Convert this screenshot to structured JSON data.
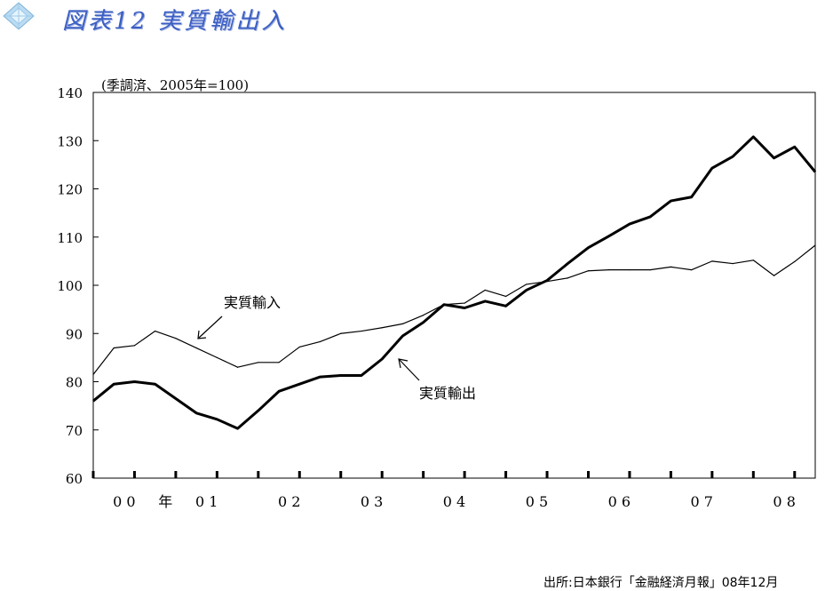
{
  "header": {
    "title": "図表12 実質輸出入",
    "icon": "diamond-emblem-icon"
  },
  "source": "出所:日本銀行「金融経済月報」08年12月",
  "colors": {
    "title": "#3c5fc4",
    "line": "#000000",
    "axis": "#000000",
    "icon": "#9ec8e8"
  },
  "chart_data": {
    "type": "line",
    "unit_note": "(季調済、2005年=100)",
    "ylim": [
      60,
      140
    ],
    "yticks": [
      60,
      70,
      80,
      90,
      100,
      110,
      120,
      130,
      140
    ],
    "grid": false,
    "xlim": [
      0,
      35
    ],
    "x_tick_labels": [
      {
        "label": "0 0",
        "x": 1.5
      },
      {
        "label": "年",
        "x": 3.5
      },
      {
        "label": "0 1",
        "x": 5.5
      },
      {
        "label": "0 2",
        "x": 9.5
      },
      {
        "label": "0 3",
        "x": 13.5
      },
      {
        "label": "0 4",
        "x": 17.5
      },
      {
        "label": "0 5",
        "x": 21.5
      },
      {
        "label": "0 6",
        "x": 25.5
      },
      {
        "label": "0 7",
        "x": 29.5
      },
      {
        "label": "0 8",
        "x": 33.5
      }
    ],
    "series": [
      {
        "name": "実質輸入",
        "style": "thin",
        "values": [
          81.5,
          87,
          87.5,
          90.5,
          89,
          87,
          85,
          83,
          84,
          84,
          87.2,
          88.3,
          90,
          90.5,
          91.2,
          92,
          93.8,
          96,
          96.3,
          99,
          97.7,
          100.2,
          100.8,
          101.5,
          103,
          103.2,
          103.2,
          103.2,
          103.8,
          103.2,
          105,
          104.5,
          105.2,
          102,
          104.9,
          108.3
        ]
      },
      {
        "name": "実質輸出",
        "style": "thick",
        "values": [
          76,
          79.5,
          80,
          79.5,
          76.5,
          73.5,
          72.2,
          70.3,
          74,
          78,
          79.5,
          81,
          81.3,
          81.3,
          84.7,
          89.5,
          92.3,
          96,
          95.3,
          96.7,
          95.7,
          99,
          101,
          104.5,
          107.8,
          110.2,
          112.7,
          114.2,
          117.5,
          118.3,
          124.3,
          126.7,
          130.8,
          126.4,
          128.7,
          123.5
        ]
      }
    ],
    "annotations": [
      {
        "text": "実質輸入",
        "series": "実質輸入"
      },
      {
        "text": "実質輸出",
        "series": "実質輸出"
      }
    ]
  }
}
